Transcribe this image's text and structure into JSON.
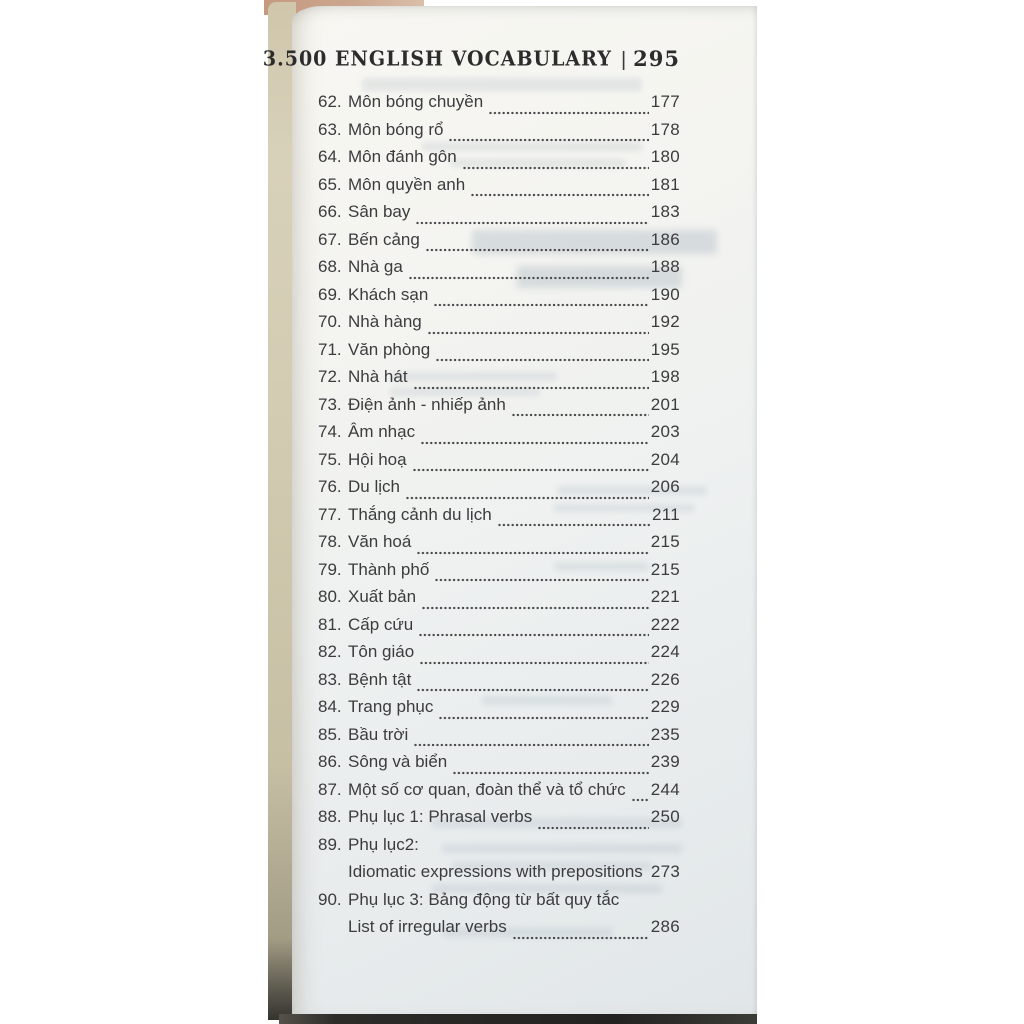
{
  "header": {
    "title": "3.500 ENGLISH VOCABULARY",
    "separator": "|",
    "page_number": "295"
  },
  "toc": {
    "rows": [
      {
        "num": "62.",
        "title": "Môn bóng chuyền",
        "page": "177"
      },
      {
        "num": "63.",
        "title": "Môn bóng rổ",
        "page": "178"
      },
      {
        "num": "64.",
        "title": "Môn đánh gôn",
        "page": "180"
      },
      {
        "num": "65.",
        "title": "Môn quyền anh",
        "page": "181"
      },
      {
        "num": "66.",
        "title": "Sân bay",
        "page": "183"
      },
      {
        "num": "67.",
        "title": "Bến cảng",
        "page": "186"
      },
      {
        "num": "68.",
        "title": "Nhà ga",
        "page": "188"
      },
      {
        "num": "69.",
        "title": "Khách sạn",
        "page": "190"
      },
      {
        "num": "70.",
        "title": "Nhà hàng",
        "page": "192"
      },
      {
        "num": "71.",
        "title": "Văn phòng",
        "page": "195"
      },
      {
        "num": "72.",
        "title": "Nhà hát",
        "page": "198"
      },
      {
        "num": "73.",
        "title": "Điện ảnh - nhiếp ảnh",
        "page": "201"
      },
      {
        "num": "74.",
        "title": "Âm nhạc",
        "page": "203"
      },
      {
        "num": "75.",
        "title": "Hội hoạ",
        "page": "204"
      },
      {
        "num": "76.",
        "title": "Du lịch",
        "page": "206"
      },
      {
        "num": "77.",
        "title": "Thắng cảnh du lịch",
        "page": "211"
      },
      {
        "num": "78.",
        "title": "Văn hoá",
        "page": "215"
      },
      {
        "num": "79.",
        "title": "Thành phố",
        "page": "215"
      },
      {
        "num": "80.",
        "title": "Xuất bản",
        "page": "221"
      },
      {
        "num": "81.",
        "title": "Cấp cứu",
        "page": "222"
      },
      {
        "num": "82.",
        "title": "Tôn giáo",
        "page": "224"
      },
      {
        "num": "83.",
        "title": "Bệnh tật",
        "page": "226"
      },
      {
        "num": "84.",
        "title": "Trang phục",
        "page": "229"
      },
      {
        "num": "85.",
        "title": "Bầu trời",
        "page": "235"
      },
      {
        "num": "86.",
        "title": "Sông và biển",
        "page": "239"
      },
      {
        "num": "87.",
        "title": "Một số cơ quan, đoàn thể và tổ chức",
        "page": "244"
      },
      {
        "num": "88.",
        "title": "Phụ lục 1: Phrasal verbs",
        "page": "250"
      },
      {
        "num": "89.",
        "title": "Phụ lục2:",
        "page": ""
      },
      {
        "num": "",
        "title": "Idiomatic expressions with prepositions",
        "page": "273"
      },
      {
        "num": "90.",
        "title": "Phụ lục 3: Bảng động từ bất quy tắc",
        "page": ""
      },
      {
        "num": "",
        "title": "List of irregular verbs",
        "page": "286"
      }
    ]
  },
  "colors": {
    "page_background": "#f3f3ef",
    "text": "#3c3c3e",
    "page_edge_strip": "#cfc7ad",
    "surface_tan": "#c59a80",
    "bottom_edge": "#2c2b28"
  }
}
